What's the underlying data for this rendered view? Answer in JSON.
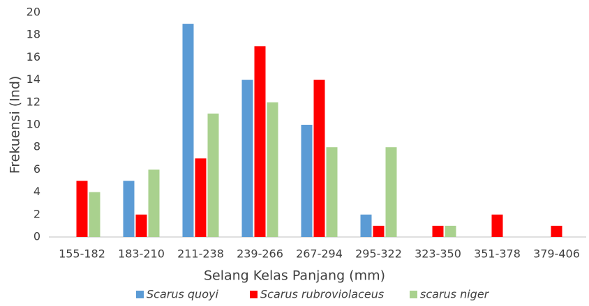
{
  "chart_data": {
    "type": "bar",
    "x_label": "Selang Kelas Panjang (mm)",
    "y_label": "Frekuensi (Ind)",
    "categories": [
      "155-182",
      "183-210",
      "211-238",
      "239-266",
      "267-294",
      "295-322",
      "323-350",
      "351-378",
      "379-406"
    ],
    "series": [
      {
        "name": "Scarus quoyi",
        "color": "#5b9bd5",
        "values": [
          0,
          5,
          19,
          14,
          10,
          2,
          0,
          0,
          0
        ]
      },
      {
        "name": "Scarus rubroviolaceus",
        "color": "#ff0000",
        "values": [
          5,
          2,
          7,
          17,
          14,
          1,
          1,
          2,
          1
        ]
      },
      {
        "name": "scarus niger",
        "color": "#a9d18e",
        "values": [
          4,
          6,
          11,
          12,
          8,
          8,
          1,
          0,
          0
        ]
      }
    ],
    "ylim": [
      0,
      20
    ],
    "yticks": [
      0,
      2,
      4,
      6,
      8,
      10,
      12,
      14,
      16,
      18,
      20
    ],
    "grid": false,
    "legend": "bottom"
  }
}
